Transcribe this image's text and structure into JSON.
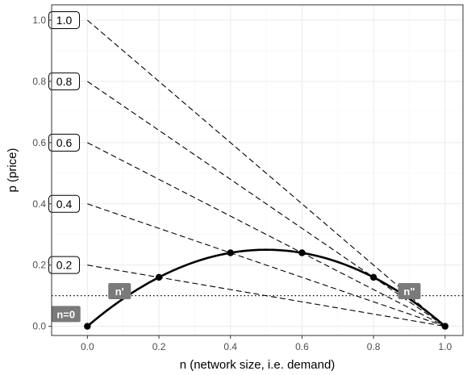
{
  "chart_data": {
    "type": "line",
    "title": "",
    "xlabel": "n (network size, i.e. demand)",
    "ylabel": "p (price)",
    "xlim": [
      -0.1,
      1.05
    ],
    "ylim": [
      -0.03,
      1.05
    ],
    "x_ticks": [
      0.0,
      0.2,
      0.4,
      0.6,
      0.8,
      1.0
    ],
    "x_tick_labels": [
      "0.0",
      "0.2",
      "0.4",
      "0.6",
      "0.8",
      "1.0"
    ],
    "y_ticks": [
      0.0,
      0.2,
      0.4,
      0.6,
      0.8,
      1.0
    ],
    "y_tick_labels": [
      "0.0",
      "0.2",
      "0.4",
      "0.6",
      "0.8",
      "1.0"
    ],
    "grid": true,
    "price_lines": [
      {
        "label": "0.2",
        "intercept": 0.2,
        "x": [
          0,
          1
        ],
        "y": [
          0.2,
          0
        ]
      },
      {
        "label": "0.4",
        "intercept": 0.4,
        "x": [
          0,
          1
        ],
        "y": [
          0.4,
          0
        ]
      },
      {
        "label": "0.6",
        "intercept": 0.6,
        "x": [
          0,
          1
        ],
        "y": [
          0.6,
          0
        ]
      },
      {
        "label": "0.8",
        "intercept": 0.8,
        "x": [
          0,
          1
        ],
        "y": [
          0.8,
          0
        ]
      },
      {
        "label": "1.0",
        "intercept": 1.0,
        "x": [
          0,
          1
        ],
        "y": [
          1.0,
          0
        ]
      }
    ],
    "curve": {
      "formula": "p = n(1-n)",
      "x_range": [
        0,
        1
      ]
    },
    "points": [
      {
        "x": 0.0,
        "y": 0.0
      },
      {
        "x": 0.2,
        "y": 0.16
      },
      {
        "x": 0.4,
        "y": 0.24
      },
      {
        "x": 0.6,
        "y": 0.24
      },
      {
        "x": 0.8,
        "y": 0.16
      },
      {
        "x": 1.0,
        "y": 0.0
      }
    ],
    "threshold_price": 0.1,
    "annotations": [
      {
        "text": "n=0",
        "x": -0.06,
        "y": 0.04
      },
      {
        "text": "n'",
        "x": 0.09,
        "y": 0.115
      },
      {
        "text": "n\"",
        "x": 0.9,
        "y": 0.115
      }
    ]
  }
}
